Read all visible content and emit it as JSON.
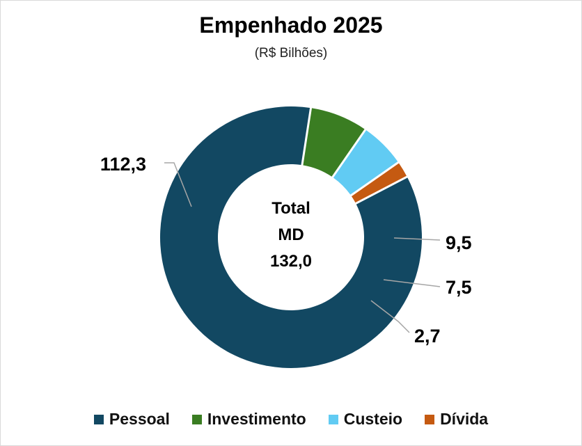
{
  "chart_data": {
    "type": "pie",
    "style": "donut",
    "title": "Empenhado 2025",
    "subtitle": "(R$ Bilhões)",
    "center_label": {
      "line1": "Total",
      "line2": "MD",
      "value": "132,0"
    },
    "categories": [
      "Pessoal",
      "Investimento",
      "Custeio",
      "Dívida"
    ],
    "values": [
      112.3,
      9.5,
      7.5,
      2.7
    ],
    "value_labels": [
      "112,3",
      "9,5",
      "7,5",
      "2,7"
    ],
    "colors": [
      "#124862",
      "#3a7d22",
      "#61cbf3",
      "#c55a11"
    ],
    "legend_position": "bottom"
  }
}
